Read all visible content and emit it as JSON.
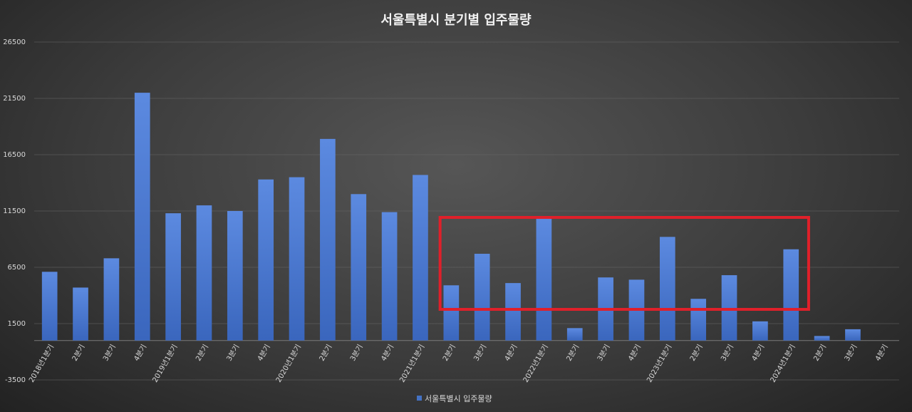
{
  "chart_data": {
    "type": "bar",
    "title": "서울특별시 분기별 입주물량",
    "xlabel": "",
    "ylabel": "",
    "ylim": [
      -3500,
      26500
    ],
    "yticks": [
      -3500,
      1500,
      6500,
      11500,
      16500,
      21500,
      26500
    ],
    "categories": [
      "2018년1분기",
      "2분기",
      "3분기",
      "4분기",
      "2019년1분기",
      "2분기",
      "3분기",
      "4분기",
      "2020년1분기",
      "2분기",
      "3분기",
      "4분기",
      "2021년1분기",
      "2분기",
      "3분기",
      "4분기",
      "2022년1분기",
      "2분기",
      "3분기",
      "4분기",
      "2023년1분기",
      "2분기",
      "3분기",
      "4분기",
      "2024년1분기",
      "2분기",
      "3분기",
      "4분기"
    ],
    "series": [
      {
        "name": "서울특별시 입주물량",
        "color": "#4472c4",
        "values": [
          6100,
          4700,
          7300,
          22000,
          11300,
          12000,
          11500,
          14300,
          14500,
          17900,
          13000,
          11400,
          14700,
          4900,
          7700,
          5100,
          10800,
          1100,
          5600,
          5400,
          9200,
          3700,
          5800,
          1700,
          8100,
          400,
          1000,
          0
        ]
      }
    ],
    "highlight": {
      "color": "#e0202a",
      "from_category": "2분기",
      "from_index": 13,
      "to_index": 24
    },
    "grid": true,
    "legend": "bottom-center"
  }
}
